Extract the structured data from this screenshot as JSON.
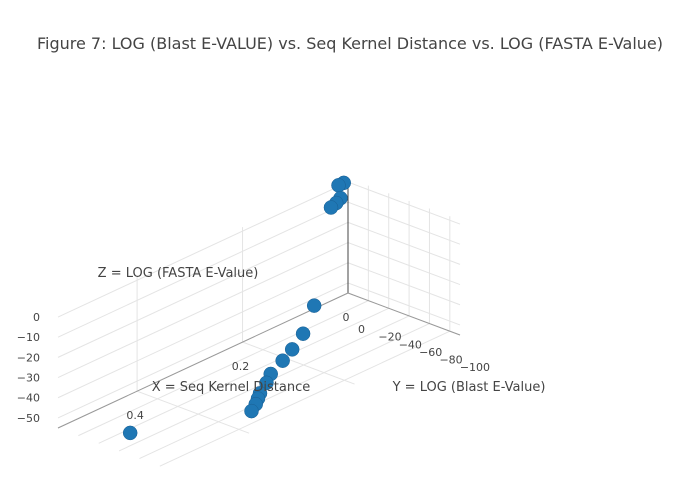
{
  "chart_data": {
    "type": "scatter3d",
    "title": "Figure 7: LOG (Blast E-VALUE) vs. Seq Kernel Distance vs. LOG (FASTA E-Value)",
    "xlabel": "X = Seq Kernel Distance",
    "ylabel": "Y = LOG (Blast E-Value)",
    "zlabel": "Z = LOG (FASTA E-Value)",
    "x_ticks": [
      "0",
      "0.2",
      "0.4"
    ],
    "y_ticks": [
      "0",
      "−20",
      "−40",
      "−60",
      "−80",
      "−100"
    ],
    "z_ticks": [
      "0",
      "−10",
      "−20",
      "−30",
      "−40",
      "−50"
    ],
    "xlim": [
      0,
      0.55
    ],
    "ylim": [
      -110,
      0
    ],
    "zlim": [
      -55,
      2
    ],
    "marker_color": "#1f77b4",
    "points": [
      {
        "x": 0.02,
        "y": -1,
        "z": 1
      },
      {
        "x": 0.01,
        "y": -1,
        "z": 1
      },
      {
        "x": 0.02,
        "y": -3,
        "z": -5
      },
      {
        "x": 0.04,
        "y": -4,
        "z": -7
      },
      {
        "x": 0.03,
        "y": -4,
        "z": -6
      },
      {
        "x": 0.18,
        "y": -60,
        "z": -28
      },
      {
        "x": 0.23,
        "y": -75,
        "z": -33
      },
      {
        "x": 0.27,
        "y": -85,
        "z": -34
      },
      {
        "x": 0.29,
        "y": -86,
        "z": -37
      },
      {
        "x": 0.33,
        "y": -95,
        "z": -37
      },
      {
        "x": 0.34,
        "y": -96,
        "z": -40
      },
      {
        "x": 0.36,
        "y": -100,
        "z": -42
      },
      {
        "x": 0.36,
        "y": -98,
        "z": -45
      },
      {
        "x": 0.37,
        "y": -101,
        "z": -46
      },
      {
        "x": 0.38,
        "y": -102,
        "z": -48
      },
      {
        "x": 0.5,
        "y": -45,
        "z": -55
      }
    ]
  }
}
